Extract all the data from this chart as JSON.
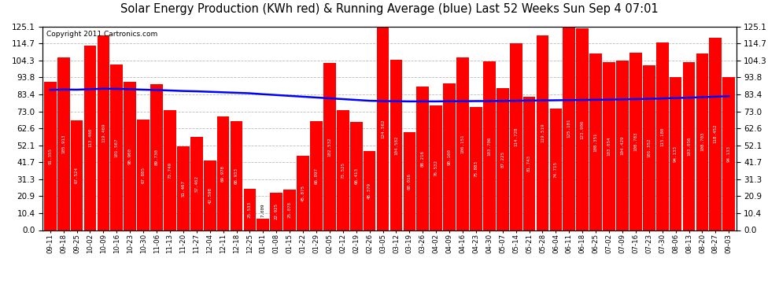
{
  "title": "Solar Energy Production (KWh red) & Running Average (blue) Last 52 Weeks Sun Sep 4 07:01",
  "copyright": "Copyright 2011 Cartronics.com",
  "bar_color": "#ff0000",
  "avg_color": "#0000ff",
  "bg_color": "#ffffff",
  "plot_bg_color": "#ffffff",
  "grid_color": "#bbbbbb",
  "ylim": [
    0,
    125.1
  ],
  "yticks": [
    0.0,
    10.4,
    20.9,
    31.3,
    41.7,
    52.1,
    62.6,
    73.0,
    83.4,
    93.8,
    104.3,
    114.7,
    125.1
  ],
  "categories": [
    "09-11",
    "09-18",
    "09-25",
    "10-02",
    "10-09",
    "10-16",
    "10-23",
    "10-30",
    "11-06",
    "11-13",
    "11-20",
    "11-27",
    "12-04",
    "12-11",
    "12-18",
    "12-25",
    "01-01",
    "01-08",
    "01-15",
    "01-22",
    "01-29",
    "02-05",
    "02-12",
    "02-19",
    "02-26",
    "03-05",
    "03-12",
    "03-19",
    "03-26",
    "04-02",
    "04-09",
    "04-16",
    "04-23",
    "04-30",
    "05-07",
    "05-14",
    "05-21",
    "05-28",
    "06-04",
    "06-11",
    "06-18",
    "06-25",
    "07-02",
    "07-09",
    "07-16",
    "07-23",
    "07-30",
    "08-06",
    "08-13",
    "08-20",
    "08-27",
    "09-03"
  ],
  "values": [
    91.355,
    105.913,
    67.524,
    113.46,
    119.469,
    101.567,
    90.9,
    67.885,
    89.73,
    73.749,
    51.467,
    57.462,
    42.598,
    69.978,
    66.933,
    25.533,
    7.009,
    22.925,
    25.078,
    45.875,
    66.897,
    102.532,
    73.525,
    66.413,
    48.379,
    124.562,
    104.582,
    60.016,
    88.216,
    76.532,
    90.1,
    106.151,
    75.883,
    103.706,
    87.225,
    114.728,
    81.743,
    119.519,
    74.715,
    125.101,
    123.906,
    108.351,
    103.054,
    104.429,
    108.783,
    101.352,
    115.18,
    94.133,
    103.056,
    108.703,
    118.452,
    94.133
  ],
  "running_avg": [
    86.2,
    86.4,
    86.3,
    86.6,
    86.9,
    86.8,
    86.6,
    86.3,
    86.1,
    85.8,
    85.5,
    85.3,
    85.0,
    84.7,
    84.4,
    84.1,
    83.5,
    83.0,
    82.5,
    82.0,
    81.5,
    81.0,
    80.5,
    80.0,
    79.5,
    79.3,
    79.2,
    79.1,
    79.1,
    79.1,
    79.2,
    79.2,
    79.3,
    79.3,
    79.4,
    79.5,
    79.6,
    79.7,
    79.8,
    79.9,
    80.0,
    80.1,
    80.2,
    80.4,
    80.5,
    80.7,
    80.9,
    81.2,
    81.4,
    81.7,
    82.0,
    82.3
  ]
}
